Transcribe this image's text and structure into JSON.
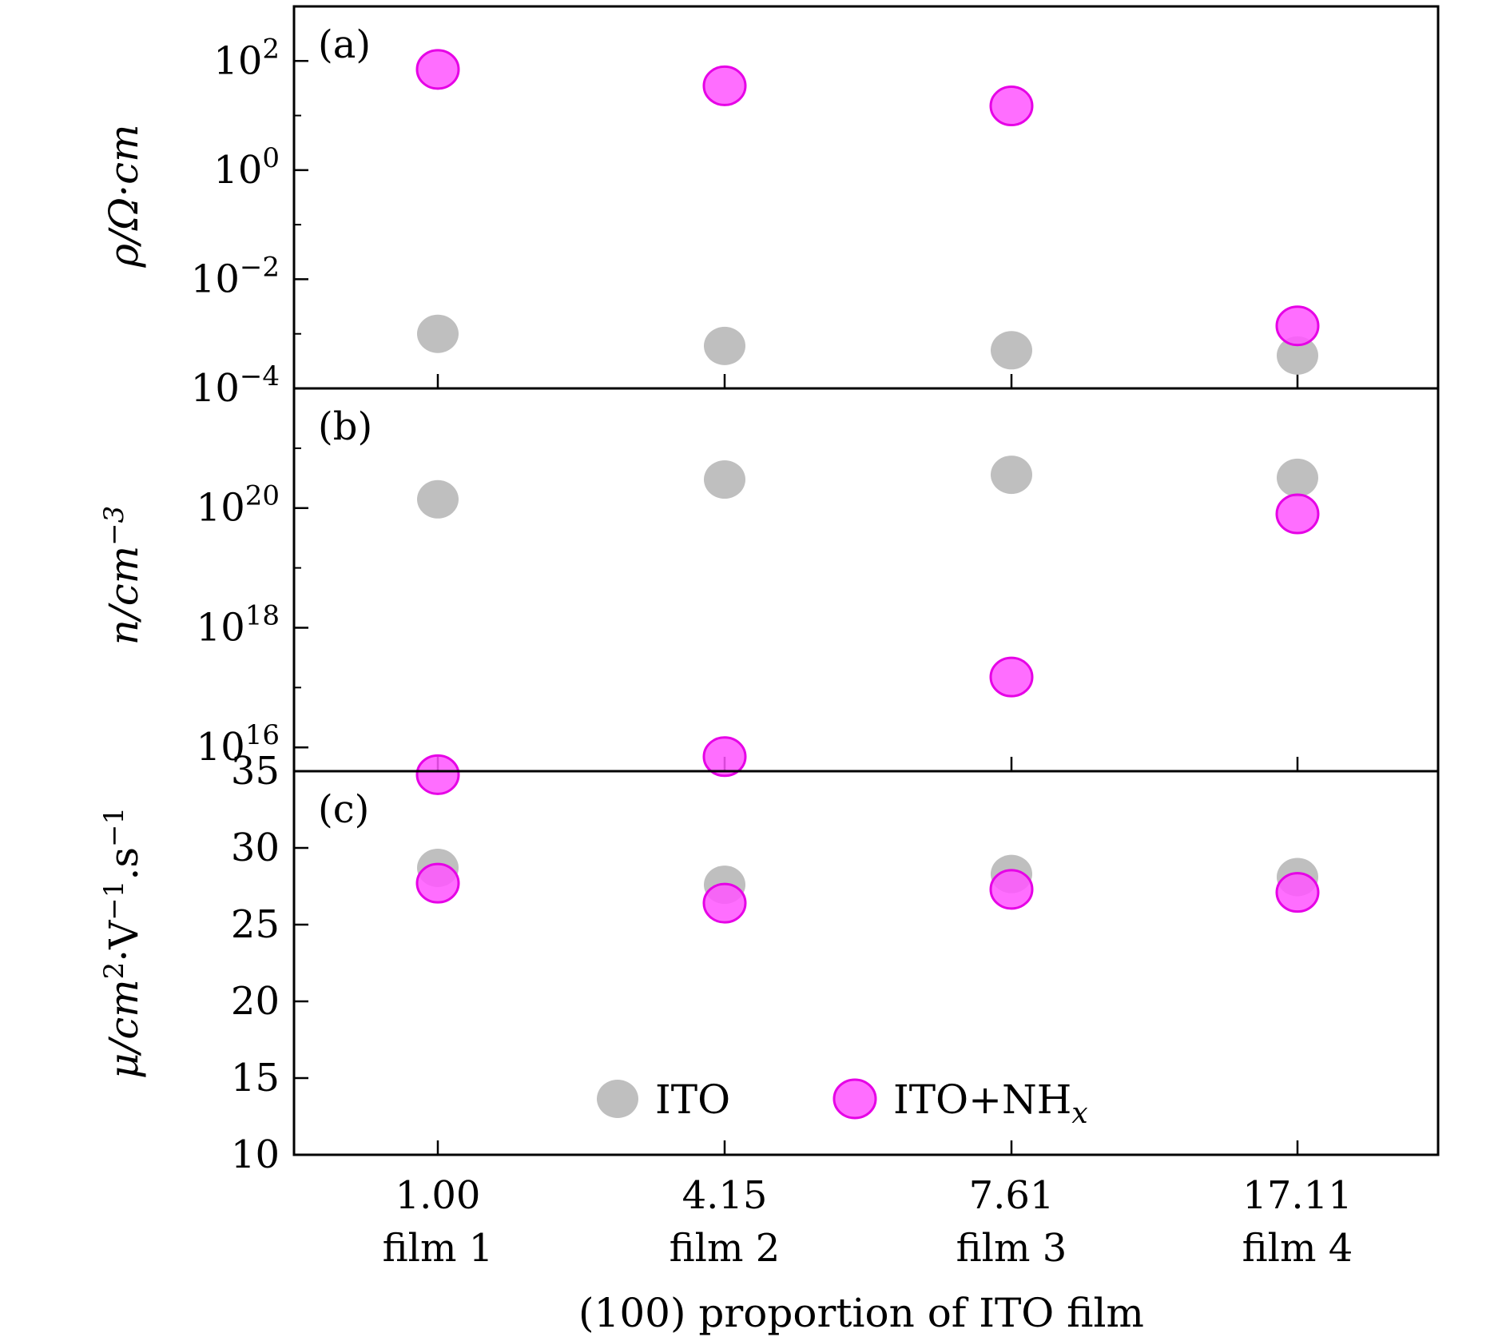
{
  "chart_data": [
    {
      "panel": "(a)",
      "type": "scatter",
      "yscale": "log",
      "ylabel": "ρ/Ω·cm",
      "ylim": [
        0.0001,
        1000
      ],
      "yticks": [
        {
          "value": 100,
          "base": "10",
          "exp": "2"
        },
        {
          "value": 1,
          "base": "10",
          "exp": "0"
        },
        {
          "value": 0.01,
          "base": "10",
          "exp": "−2"
        },
        {
          "value": 0.0001,
          "base": "10",
          "exp": "−4"
        }
      ],
      "series": [
        {
          "name": "ITO",
          "values": [
            0.001,
            0.0006,
            0.0005,
            0.0004
          ]
        },
        {
          "name": "ITO+NH",
          "values": [
            70,
            35,
            15,
            0.0014
          ]
        }
      ]
    },
    {
      "panel": "(b)",
      "type": "scatter",
      "yscale": "log",
      "ylabel": "n/cm",
      "ylabel_sup": "−3",
      "ylim": [
        4000000000000000.0,
        1e+22
      ],
      "yticks": [
        {
          "value": 1e+20,
          "base": "10",
          "exp": "20"
        },
        {
          "value": 1e+18,
          "base": "10",
          "exp": "18"
        },
        {
          "value": 1e+16,
          "base": "10",
          "exp": "16"
        }
      ],
      "series": [
        {
          "name": "ITO",
          "values": [
            1.4e+20,
            3e+20,
            3.6e+20,
            3.2e+20
          ]
        },
        {
          "name": "ITO+NH",
          "values": [
            3500000000000000.0,
            7000000000000000.0,
            1.5e+17,
            8e+19
          ]
        }
      ]
    },
    {
      "panel": "(c)",
      "type": "scatter",
      "yscale": "linear",
      "ylabel": "μ/cm",
      "ylim": [
        10,
        35
      ],
      "yticks": [
        {
          "value": 35,
          "base": "35"
        },
        {
          "value": 30,
          "base": "30"
        },
        {
          "value": 25,
          "base": "25"
        },
        {
          "value": 20,
          "base": "20"
        },
        {
          "value": 15,
          "base": "15"
        },
        {
          "value": 10,
          "base": "10"
        }
      ],
      "series": [
        {
          "name": "ITO",
          "values": [
            28.7,
            27.6,
            28.3,
            28.1
          ]
        },
        {
          "name": "ITO+NH",
          "values": [
            27.7,
            26.4,
            27.3,
            27.1
          ]
        }
      ]
    }
  ],
  "x_categories": [
    {
      "value": "1.00",
      "name": "film 1"
    },
    {
      "value": "4.15",
      "name": "film 2"
    },
    {
      "value": "7.61",
      "name": "film 3"
    },
    {
      "value": "17.11",
      "name": "film 4"
    }
  ],
  "xlabel": "(100) proportion of ITO film",
  "legend": {
    "placement": "lower-center",
    "items": [
      {
        "label": "ITO"
      },
      {
        "label": "ITO+NH",
        "sub": "x"
      }
    ]
  },
  "colors": {
    "ITO_fill": "#bfbfbf",
    "NH_fill": "#ff55ff",
    "NH_edge": "#e600e6"
  }
}
